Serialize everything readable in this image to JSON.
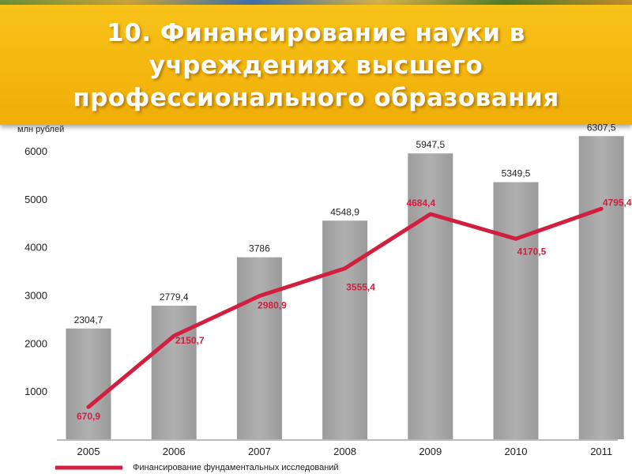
{
  "title": "10. Финансирование науки в учреждениях высшего профессионального образования",
  "colors": {
    "banner": "#f4b70f",
    "bar": "#a7a7a7",
    "line": "#d1203f",
    "axis_text": "#222222"
  },
  "chart_data": {
    "type": "bar",
    "ylabel": "млн рублей",
    "ylim": [
      0,
      6000
    ],
    "yticks": [
      1000,
      2000,
      3000,
      4000,
      5000,
      6000
    ],
    "grid": false,
    "categories": [
      "2005",
      "2006",
      "2007",
      "2008",
      "2009",
      "2010",
      "2011"
    ],
    "series": [
      {
        "values": [
          2304.7,
          2779.4,
          3786,
          4548.9,
          5947.5,
          5349.5,
          6307.5
        ],
        "labels": [
          "2304,7",
          "2779,4",
          "3786",
          "4548,9",
          "5947,5",
          "5349,5",
          "6307,5"
        ]
      },
      {
        "name": "Финансирование фундаментальных исследований",
        "type": "line",
        "values": [
          670.9,
          2150.7,
          2980.9,
          3555.4,
          4684.4,
          4170.5,
          4795.4
        ],
        "labels": [
          "670,9",
          "2150,7",
          "2980,9",
          "3555,4",
          "4684,4",
          "4170,5",
          "4795,4"
        ]
      }
    ],
    "legend_position": "bottom-left"
  }
}
